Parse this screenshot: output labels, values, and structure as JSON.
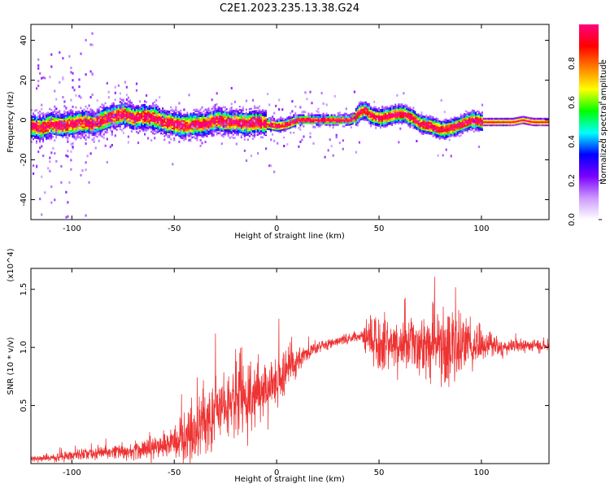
{
  "title": "C2E1.2023.235.13.38.G24",
  "chart_data": [
    {
      "type": "heatmap",
      "xlabel": "Height of straight line (km)",
      "ylabel": "Frequency (Hz)",
      "xlim": [
        -120,
        133
      ],
      "ylim": [
        -50,
        48
      ],
      "xticks": [
        -100,
        -50,
        0,
        50,
        100
      ],
      "yticks": [
        -40,
        -20,
        0,
        20,
        40
      ],
      "colorbar": {
        "label": "Normalized spectral amplitude",
        "range": [
          0,
          1
        ],
        "ticks": [
          "0.0",
          "0.2",
          "0.4",
          "0.6",
          "0.8"
        ],
        "colors": [
          "#ffffff",
          "#cc99ff",
          "#7a00ff",
          "#0000ff",
          "#00ffff",
          "#00ff00",
          "#ffff00",
          "#ff8000",
          "#ff0000",
          "#ff0080"
        ]
      },
      "ridge": [
        [
          -120,
          -3
        ],
        [
          -115,
          -4
        ],
        [
          -110,
          -2
        ],
        [
          -105,
          -3
        ],
        [
          -100,
          -2
        ],
        [
          -95,
          -1
        ],
        [
          -90,
          -2
        ],
        [
          -85,
          0
        ],
        [
          -80,
          2
        ],
        [
          -75,
          3
        ],
        [
          -70,
          1
        ],
        [
          -65,
          2
        ],
        [
          -60,
          1
        ],
        [
          -55,
          -1
        ],
        [
          -50,
          -2
        ],
        [
          -45,
          -3
        ],
        [
          -40,
          -2
        ],
        [
          -35,
          -2
        ],
        [
          -30,
          0
        ],
        [
          -25,
          -1
        ],
        [
          -20,
          -1
        ],
        [
          -15,
          -2
        ],
        [
          -10,
          -1
        ],
        [
          -5,
          -2
        ],
        [
          0,
          -3
        ],
        [
          5,
          -2
        ],
        [
          10,
          0
        ],
        [
          15,
          0
        ],
        [
          20,
          0
        ],
        [
          25,
          0
        ],
        [
          30,
          0
        ],
        [
          35,
          0
        ],
        [
          38,
          1
        ],
        [
          40,
          4
        ],
        [
          43,
          5
        ],
        [
          46,
          2
        ],
        [
          50,
          1
        ],
        [
          55,
          2
        ],
        [
          58,
          3
        ],
        [
          62,
          3
        ],
        [
          66,
          1
        ],
        [
          70,
          -2
        ],
        [
          75,
          -3
        ],
        [
          80,
          -5
        ],
        [
          85,
          -4
        ],
        [
          90,
          -2
        ],
        [
          95,
          0
        ],
        [
          100,
          -1
        ],
        [
          105,
          -1
        ],
        [
          110,
          -1
        ],
        [
          115,
          -1
        ],
        [
          120,
          0
        ],
        [
          125,
          -1
        ],
        [
          133,
          -1
        ]
      ]
    },
    {
      "type": "line",
      "xlabel": "Height of straight line (km)",
      "ylabel": "SNR (10 * v/v)",
      "y_multiplier": "(x10^4)",
      "xlim": [
        -120,
        133
      ],
      "ylim": [
        0,
        1.68
      ],
      "xticks": [
        -100,
        -50,
        0,
        50,
        100
      ],
      "yticks": [
        0.5,
        1.0,
        1.5
      ],
      "series": [
        {
          "color": "#ee3333",
          "x": [
            -120,
            -110,
            -100,
            -90,
            -80,
            -70,
            -60,
            -55,
            -50,
            -45,
            -40,
            -35,
            -30,
            -25,
            -20,
            -15,
            -10,
            -5,
            0,
            5,
            10,
            15,
            20,
            25,
            30,
            35,
            40,
            45,
            50,
            55,
            60,
            65,
            70,
            75,
            80,
            85,
            90,
            95,
            100,
            105,
            110,
            115,
            120,
            125,
            133
          ],
          "mean": [
            0.04,
            0.05,
            0.07,
            0.09,
            0.1,
            0.11,
            0.13,
            0.15,
            0.18,
            0.25,
            0.3,
            0.4,
            0.45,
            0.5,
            0.52,
            0.55,
            0.6,
            0.65,
            0.72,
            0.8,
            0.88,
            0.95,
            1.0,
            1.02,
            1.05,
            1.08,
            1.1,
            1.08,
            1.05,
            1.02,
            1.0,
            1.05,
            1.0,
            1.05,
            1.02,
            1.0,
            1.02,
            1.0,
            1.0,
            1.02,
            1.0,
            1.02,
            1.0,
            1.02,
            1.0
          ],
          "spread": [
            0.03,
            0.04,
            0.05,
            0.06,
            0.07,
            0.08,
            0.1,
            0.12,
            0.15,
            0.25,
            0.3,
            0.35,
            0.35,
            0.3,
            0.35,
            0.35,
            0.3,
            0.35,
            0.25,
            0.2,
            0.12,
            0.08,
            0.06,
            0.05,
            0.05,
            0.05,
            0.05,
            0.2,
            0.3,
            0.25,
            0.2,
            0.3,
            0.25,
            0.3,
            0.4,
            0.45,
            0.3,
            0.25,
            0.15,
            0.1,
            0.08,
            0.07,
            0.06,
            0.05,
            0.05
          ]
        }
      ]
    }
  ]
}
